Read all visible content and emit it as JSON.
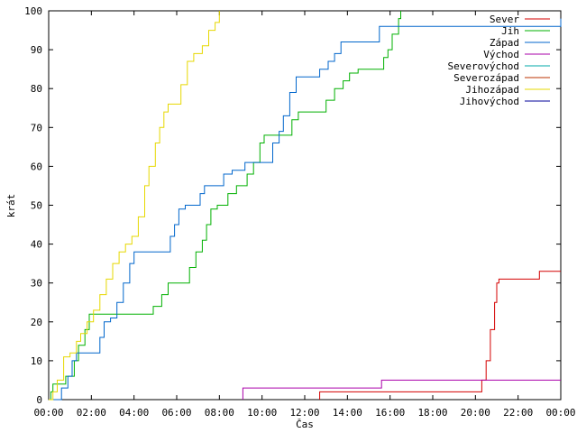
{
  "chart_data": {
    "type": "line",
    "xlabel": "Čas",
    "ylabel": "krát",
    "x_ticks": [
      "00:00",
      "02:00",
      "04:00",
      "06:00",
      "08:00",
      "10:00",
      "12:00",
      "14:00",
      "16:00",
      "18:00",
      "20:00",
      "22:00",
      "00:00"
    ],
    "xlim": [
      0,
      24
    ],
    "ylim": [
      0,
      100
    ],
    "y_ticks": [
      0,
      10,
      20,
      30,
      40,
      50,
      60,
      70,
      80,
      90,
      100
    ],
    "grid": false,
    "legend_position": "top-right",
    "series": [
      {
        "name": "Sever",
        "color": "#d40000",
        "points": [
          [
            12.7,
            0
          ],
          [
            12.7,
            2
          ],
          [
            20.2,
            2
          ],
          [
            20.3,
            5
          ],
          [
            20.5,
            10
          ],
          [
            20.7,
            18
          ],
          [
            20.9,
            25
          ],
          [
            21.0,
            30
          ],
          [
            21.1,
            31
          ],
          [
            22.9,
            31
          ],
          [
            23.0,
            33
          ],
          [
            24.0,
            33
          ]
        ]
      },
      {
        "name": "Jih",
        "color": "#00b000",
        "points": [
          [
            0,
            0
          ],
          [
            0.1,
            2
          ],
          [
            0.2,
            4
          ],
          [
            0.5,
            4
          ],
          [
            0.8,
            6
          ],
          [
            1.2,
            10
          ],
          [
            1.4,
            14
          ],
          [
            1.7,
            18
          ],
          [
            1.9,
            22
          ],
          [
            4.4,
            22
          ],
          [
            4.9,
            24
          ],
          [
            5.3,
            27
          ],
          [
            5.6,
            30
          ],
          [
            6.4,
            30
          ],
          [
            6.6,
            34
          ],
          [
            6.9,
            38
          ],
          [
            7.2,
            41
          ],
          [
            7.4,
            45
          ],
          [
            7.6,
            49
          ],
          [
            7.9,
            50
          ],
          [
            8.4,
            53
          ],
          [
            8.8,
            55
          ],
          [
            9.3,
            58
          ],
          [
            9.6,
            61
          ],
          [
            9.9,
            66
          ],
          [
            10.1,
            68
          ],
          [
            11.0,
            68
          ],
          [
            11.4,
            72
          ],
          [
            11.7,
            74
          ],
          [
            12.8,
            74
          ],
          [
            13.0,
            77
          ],
          [
            13.4,
            80
          ],
          [
            13.8,
            82
          ],
          [
            14.1,
            84
          ],
          [
            14.5,
            85
          ],
          [
            15.3,
            85
          ],
          [
            15.7,
            88
          ],
          [
            15.9,
            90
          ],
          [
            16.1,
            94
          ],
          [
            16.4,
            98
          ],
          [
            16.5,
            100
          ]
        ]
      },
      {
        "name": "Západ",
        "color": "#0066cc",
        "points": [
          [
            0,
            0
          ],
          [
            0.4,
            0
          ],
          [
            0.6,
            3
          ],
          [
            0.9,
            6
          ],
          [
            1.1,
            10
          ],
          [
            1.3,
            12
          ],
          [
            2.3,
            12
          ],
          [
            2.4,
            16
          ],
          [
            2.6,
            20
          ],
          [
            2.9,
            21
          ],
          [
            3.2,
            25
          ],
          [
            3.5,
            30
          ],
          [
            3.8,
            35
          ],
          [
            4.0,
            38
          ],
          [
            5.5,
            38
          ],
          [
            5.7,
            42
          ],
          [
            5.9,
            45
          ],
          [
            6.1,
            49
          ],
          [
            6.4,
            50
          ],
          [
            6.9,
            50
          ],
          [
            7.1,
            53
          ],
          [
            7.3,
            55
          ],
          [
            8.0,
            55
          ],
          [
            8.2,
            58
          ],
          [
            8.6,
            59
          ],
          [
            9.2,
            61
          ],
          [
            10.2,
            61
          ],
          [
            10.5,
            66
          ],
          [
            10.8,
            69
          ],
          [
            11.0,
            73
          ],
          [
            11.3,
            79
          ],
          [
            11.6,
            83
          ],
          [
            12.4,
            83
          ],
          [
            12.7,
            85
          ],
          [
            13.1,
            87
          ],
          [
            13.4,
            89
          ],
          [
            13.7,
            92
          ],
          [
            15.1,
            92
          ],
          [
            15.5,
            96
          ],
          [
            24.0,
            96
          ],
          [
            24.0,
            98
          ]
        ]
      },
      {
        "name": "Východ",
        "color": "#aa00aa",
        "points": [
          [
            9.1,
            0
          ],
          [
            9.1,
            3
          ],
          [
            15.5,
            3
          ],
          [
            15.6,
            5
          ],
          [
            24.0,
            5
          ]
        ]
      },
      {
        "name": "Severovýchod",
        "color": "#00aaaa",
        "points": []
      },
      {
        "name": "Severozápad",
        "color": "#bb3300",
        "points": []
      },
      {
        "name": "Jihozápad",
        "color": "#e6d800",
        "points": [
          [
            0,
            0
          ],
          [
            0.2,
            2
          ],
          [
            0.4,
            5
          ],
          [
            0.7,
            11
          ],
          [
            1.0,
            12
          ],
          [
            1.3,
            15
          ],
          [
            1.5,
            17
          ],
          [
            1.8,
            20
          ],
          [
            2.1,
            23
          ],
          [
            2.4,
            27
          ],
          [
            2.7,
            31
          ],
          [
            3.0,
            35
          ],
          [
            3.3,
            38
          ],
          [
            3.6,
            40
          ],
          [
            3.9,
            42
          ],
          [
            4.2,
            47
          ],
          [
            4.5,
            55
          ],
          [
            4.7,
            60
          ],
          [
            5.0,
            66
          ],
          [
            5.2,
            70
          ],
          [
            5.4,
            74
          ],
          [
            5.6,
            76
          ],
          [
            6.0,
            76
          ],
          [
            6.2,
            81
          ],
          [
            6.5,
            87
          ],
          [
            6.8,
            89
          ],
          [
            7.2,
            91
          ],
          [
            7.5,
            95
          ],
          [
            7.8,
            97
          ],
          [
            8.0,
            100
          ]
        ]
      },
      {
        "name": "Jihovýchod",
        "color": "#000099",
        "points": []
      }
    ]
  }
}
